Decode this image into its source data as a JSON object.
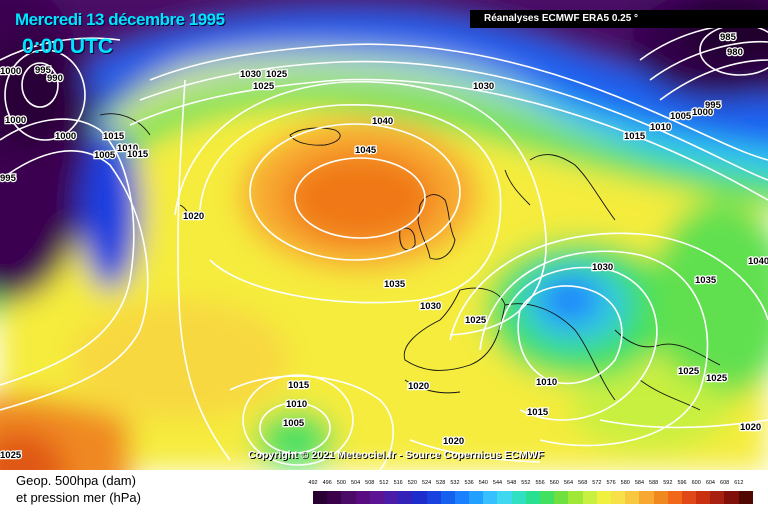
{
  "header": {
    "title": "Mercredi 13 décembre 1995",
    "time": "0:00 UTC",
    "source": "Réanalyses ECMWF ERA5 0.25 °",
    "copyright": "Copyright © 2021 Meteociel.fr - Source Copernicus ECMWF"
  },
  "legend": {
    "line1": "Geop. 500hpa (dam)",
    "line2": "et pression mer (hPa)",
    "scale": [
      {
        "value": "492",
        "color": "#2a0033"
      },
      {
        "value": "496",
        "color": "#3b004a"
      },
      {
        "value": "500",
        "color": "#4a0a66"
      },
      {
        "value": "504",
        "color": "#580c80"
      },
      {
        "value": "508",
        "color": "#5b1494"
      },
      {
        "value": "512",
        "color": "#4b1ca8"
      },
      {
        "value": "516",
        "color": "#3322b8"
      },
      {
        "value": "520",
        "color": "#1f2ccc"
      },
      {
        "value": "524",
        "color": "#1a40e0"
      },
      {
        "value": "528",
        "color": "#1660f0"
      },
      {
        "value": "532",
        "color": "#1a80ff"
      },
      {
        "value": "536",
        "color": "#22a0ff"
      },
      {
        "value": "540",
        "color": "#36c0ff"
      },
      {
        "value": "544",
        "color": "#40d8f0"
      },
      {
        "value": "548",
        "color": "#30e0c0"
      },
      {
        "value": "552",
        "color": "#28e090"
      },
      {
        "value": "556",
        "color": "#40e060"
      },
      {
        "value": "560",
        "color": "#70e040"
      },
      {
        "value": "564",
        "color": "#a0e838"
      },
      {
        "value": "568",
        "color": "#c8f040"
      },
      {
        "value": "572",
        "color": "#f0f040"
      },
      {
        "value": "576",
        "color": "#f8e048"
      },
      {
        "value": "580",
        "color": "#f8c840"
      },
      {
        "value": "584",
        "color": "#f8a830"
      },
      {
        "value": "588",
        "color": "#f08820"
      },
      {
        "value": "592",
        "color": "#f06818"
      },
      {
        "value": "596",
        "color": "#e04818"
      },
      {
        "value": "600",
        "color": "#c83010"
      },
      {
        "value": "604",
        "color": "#a82010"
      },
      {
        "value": "608",
        "color": "#801008"
      },
      {
        "value": "612",
        "color": "#500800"
      }
    ]
  },
  "isobars": [
    "1000",
    "995",
    "990",
    "1000",
    "1000",
    "1005",
    "1010",
    "1015",
    "1015",
    "995",
    "1020",
    "1030",
    "1025",
    "1025",
    "1030",
    "1040",
    "1045",
    "1035",
    "1030",
    "1025",
    "1030",
    "1035",
    "1040",
    "1025",
    "1025",
    "1020",
    "1010",
    "1015",
    "1020",
    "1020",
    "1015",
    "1010",
    "1005",
    "1015",
    "1010",
    "1005",
    "1000",
    "995",
    "985",
    "980",
    "1025"
  ]
}
